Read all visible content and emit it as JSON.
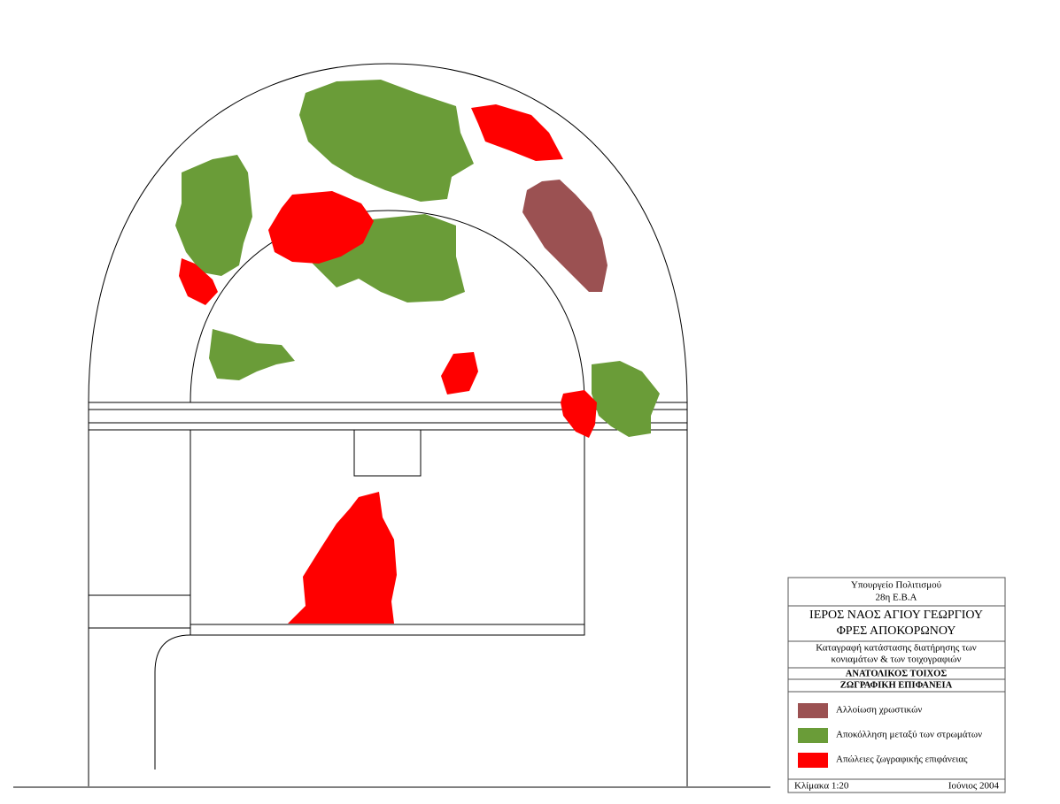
{
  "title_block": {
    "ministry": "Υπουργείο Πολιτισμού",
    "office": "28η Ε.Β.Α",
    "church_line1": "ΙΕΡΟΣ ΝΑΟΣ ΑΓΙΟΥ ΓΕΩΡΓΙΟΥ",
    "church_line2": "ΦΡΕΣ ΑΠΟΚΟΡΩΝΟΥ",
    "subject_line1": "Καταγραφή κατάστασης διατήρησης των",
    "subject_line2": "κονιαμάτων & των τοιχογραφιών",
    "wall": "ΑΝΑΤΟΛΙΚΟΣ ΤΟΙΧΟΣ",
    "surface": "ΖΩΓΡΑΦΙΚΗ ΕΠΙΦΑΝΕΙΑ",
    "legend": [
      {
        "label": "Αλλοίωση χρωστικών",
        "color": "#9b5152"
      },
      {
        "label": "Αποκόλληση μεταξύ των στρωμάτων",
        "color": "#6a9c38"
      },
      {
        "label": "Απώλειες ζωγραφικής επιφάνειας",
        "color": "#ff0000"
      }
    ],
    "scale": "Κλίμακα 1:20",
    "date": "Ιούνιος 2004"
  }
}
